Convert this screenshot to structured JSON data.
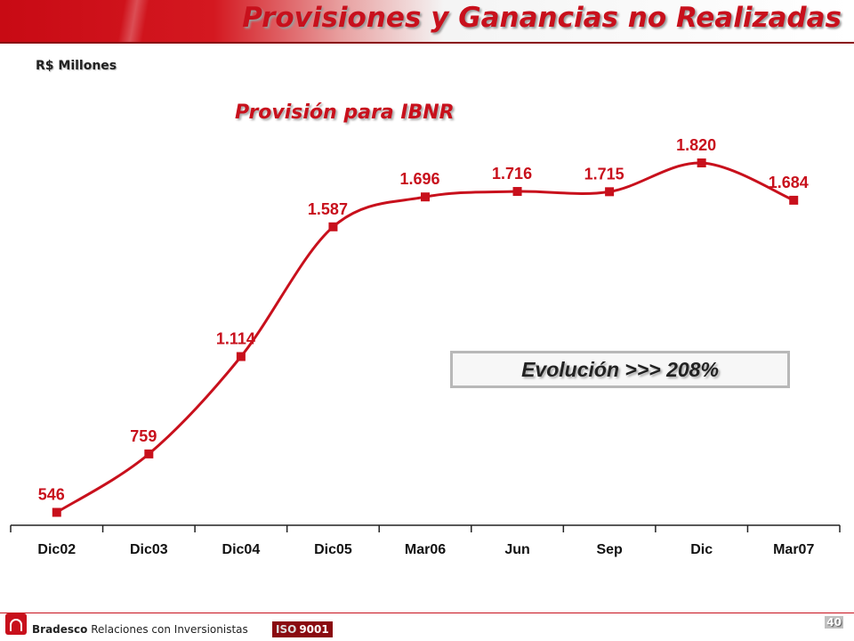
{
  "header": {
    "title": "Provisiones y Ganancias no Realizadas",
    "units": "R$ Millones"
  },
  "footer": {
    "brand": "Bradesco",
    "brand_suffix": "Relaciones con Inversionistas",
    "iso_label": "ISO",
    "iso_number": "9001",
    "page_number": "40"
  },
  "callout": {
    "text": "Evolución >>> 208%"
  },
  "colors": {
    "accent": "#c8101c",
    "header_red": "#c80a14",
    "text_dark": "#222222"
  },
  "chart_data": {
    "type": "line",
    "title": "Provisión para IBNR",
    "xlabel": "",
    "ylabel": "",
    "categories": [
      "Dic02",
      "Dic03",
      "Dic04",
      "Dic05",
      "Mar06",
      "Jun",
      "Sep",
      "Dic",
      "Mar07"
    ],
    "values": [
      546,
      759,
      1114,
      1587,
      1696,
      1716,
      1715,
      1820,
      1684
    ],
    "value_labels": [
      "546",
      "759",
      "1.114",
      "1.587",
      "1.696",
      "1.716",
      "1.715",
      "1.820",
      "1.684"
    ],
    "grid": false,
    "legend": "none",
    "smooth": true
  }
}
